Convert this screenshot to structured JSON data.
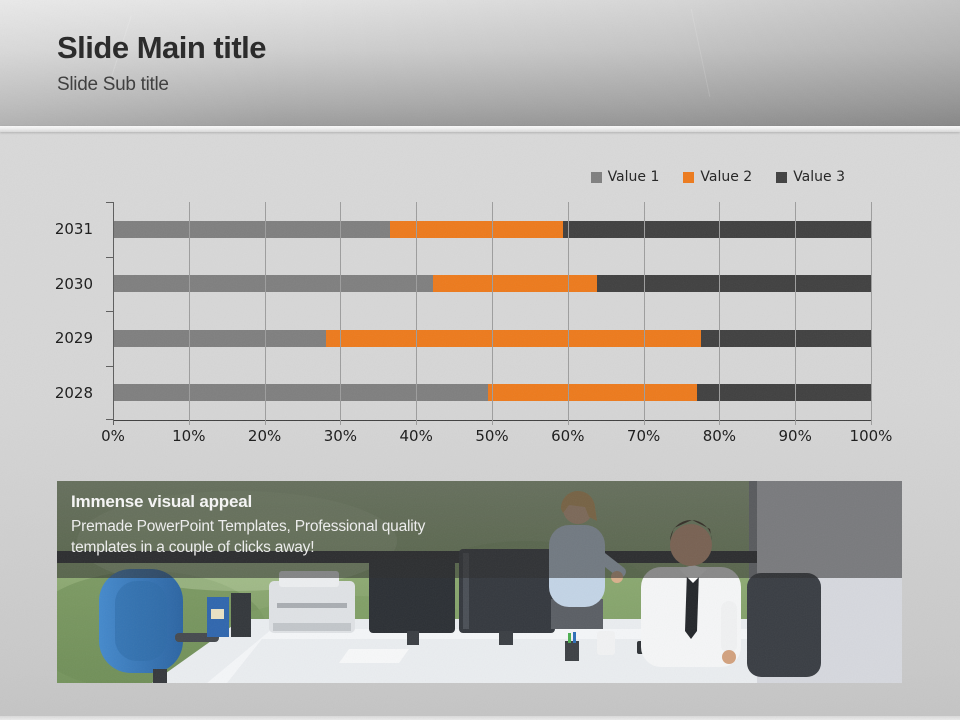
{
  "slide": {
    "title": "Slide Main title",
    "subtitle": "Slide Sub title"
  },
  "chart_data": {
    "type": "bar",
    "subtype": "horizontal-100pct-stacked",
    "title": "",
    "categories": [
      "2031",
      "2030",
      "2029",
      "2028"
    ],
    "series": [
      {
        "name": "Value 1",
        "color": "#7f7f7f",
        "values": [
          4.5,
          3.5,
          2.5,
          4.3
        ]
      },
      {
        "name": "Value 2",
        "color": "#ed7a1c",
        "values": [
          2.8,
          1.8,
          4.4,
          2.4
        ]
      },
      {
        "name": "Value 3",
        "color": "#404040",
        "values": [
          5,
          3,
          2,
          2
        ]
      }
    ],
    "percentages_by_category": {
      "2031": [
        36.6,
        22.8,
        40.7
      ],
      "2030": [
        42.2,
        21.7,
        36.1
      ],
      "2029": [
        28.1,
        49.4,
        22.5
      ],
      "2028": [
        49.4,
        27.6,
        23.0
      ]
    },
    "x_axis": {
      "range": [
        0,
        100
      ],
      "ticks": [
        "0%",
        "10%",
        "20%",
        "30%",
        "40%",
        "50%",
        "60%",
        "70%",
        "80%",
        "90%",
        "100%"
      ]
    },
    "legend_position": "top-right",
    "grid": true
  },
  "banner": {
    "heading": "Immense visual appeal",
    "line1": "Premade PowerPoint Templates, Professional quality",
    "line2": "templates in a couple of clicks away!"
  },
  "colors": {
    "series1": "#7f7f7f",
    "series2": "#ed7a1c",
    "series3": "#404040",
    "axis_text": "#1a1a1a",
    "gridline": "#9d9d9d",
    "title_text": "#272727",
    "banner_text": "#f4f4f4"
  }
}
